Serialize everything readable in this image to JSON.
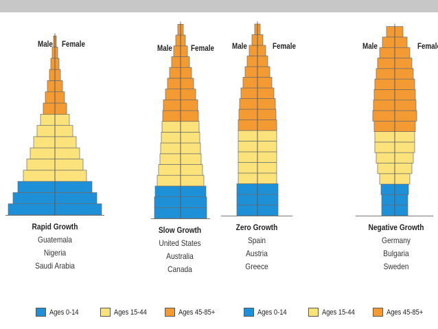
{
  "colors": {
    "ages_0_14": "#1e90d8",
    "ages_15_44": "#fbe27a",
    "ages_45_85": "#f39a33"
  },
  "pyramids": [
    {
      "title": "Rapid Growth",
      "countries": [
        "Guatemala",
        "Nigeria",
        "Saudi Arabia"
      ],
      "male_label": "Male",
      "female_label": "Female",
      "bands": [
        "ages_0_14",
        "ages_0_14",
        "ages_0_14",
        "ages_15_44",
        "ages_15_44",
        "ages_15_44",
        "ages_15_44",
        "ages_15_44",
        "ages_15_44",
        "ages_45_85",
        "ages_45_85",
        "ages_45_85",
        "ages_45_85",
        "ages_45_85",
        "ages_45_85",
        "ages_45_85"
      ],
      "widths": [
        68,
        61,
        54,
        46,
        41,
        36,
        31,
        26,
        21,
        17,
        14,
        11,
        8,
        6,
        4,
        2
      ]
    },
    {
      "title": "Slow Growth",
      "countries": [
        "United States",
        "Australia",
        "Canada"
      ],
      "male_label": "Male",
      "female_label": "Female",
      "bands": [
        "ages_0_14",
        "ages_0_14",
        "ages_0_14",
        "ages_15_44",
        "ages_15_44",
        "ages_15_44",
        "ages_15_44",
        "ages_15_44",
        "ages_15_44",
        "ages_45_85",
        "ages_45_85",
        "ages_45_85",
        "ages_45_85",
        "ages_45_85",
        "ages_45_85",
        "ages_45_85",
        "ages_45_85",
        "ages_45_85"
      ],
      "widths": [
        38,
        38,
        37,
        34,
        32,
        30,
        29,
        28,
        27,
        26,
        25,
        22,
        19,
        16,
        13,
        10,
        7,
        4
      ]
    },
    {
      "title": "Zero Growth",
      "countries": [
        "Spain",
        "Austria",
        "Greece"
      ],
      "male_label": "Male",
      "female_label": "Female",
      "bands": [
        "ages_0_14",
        "ages_0_14",
        "ages_0_14",
        "ages_15_44",
        "ages_15_44",
        "ages_15_44",
        "ages_15_44",
        "ages_15_44",
        "ages_45_85",
        "ages_45_85",
        "ages_45_85",
        "ages_45_85",
        "ages_45_85",
        "ages_45_85",
        "ages_45_85",
        "ages_45_85",
        "ages_45_85",
        "ages_45_85"
      ],
      "widths": [
        30,
        30,
        30,
        28,
        28,
        28,
        28,
        28,
        28,
        27,
        26,
        24,
        21,
        18,
        15,
        12,
        8,
        4
      ]
    },
    {
      "title": "Negative Growth",
      "countries": [
        "Germany",
        "Bulgaria",
        "Sweden"
      ],
      "male_label": "Male",
      "female_label": "Female",
      "bands": [
        "ages_0_14",
        "ages_0_14",
        "ages_0_14",
        "ages_15_44",
        "ages_15_44",
        "ages_15_44",
        "ages_15_44",
        "ages_15_44",
        "ages_45_85",
        "ages_45_85",
        "ages_45_85",
        "ages_45_85",
        "ages_45_85",
        "ages_45_85",
        "ages_45_85",
        "ages_45_85",
        "ages_45_85",
        "ages_45_85"
      ],
      "widths": [
        19,
        19,
        20,
        22,
        25,
        27,
        29,
        29,
        30,
        32,
        31,
        30,
        29,
        27,
        25,
        22,
        18,
        12
      ]
    }
  ],
  "legends": [
    {
      "items": [
        {
          "key": "ages_0_14",
          "label": "Ages 0-14"
        },
        {
          "key": "ages_15_44",
          "label": "Ages 15-44"
        },
        {
          "key": "ages_45_85",
          "label": "Ages 45-85+"
        }
      ]
    },
    {
      "items": [
        {
          "key": "ages_0_14",
          "label": "Ages 0-14"
        },
        {
          "key": "ages_15_44",
          "label": "Ages 15-44"
        },
        {
          "key": "ages_45_85",
          "label": "Ages 45-85+"
        }
      ]
    }
  ]
}
